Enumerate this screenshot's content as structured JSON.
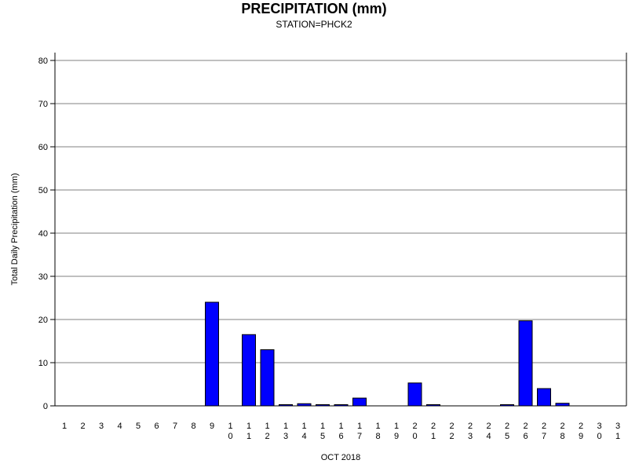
{
  "chart_data": {
    "type": "bar",
    "title": "PRECIPITATION (mm)",
    "subtitle": "STATION=PHCK2",
    "xlabel": "OCT 2018",
    "ylabel": "Total Daily Precipitation (mm)",
    "ylim": [
      0,
      80
    ],
    "yticks": [
      0,
      10,
      20,
      30,
      40,
      50,
      60,
      70,
      80
    ],
    "grid": true,
    "bar_color": "#0000ff",
    "categories": [
      "1",
      "2",
      "3",
      "4",
      "5",
      "6",
      "7",
      "8",
      "9",
      "10",
      "11",
      "12",
      "13",
      "14",
      "15",
      "16",
      "17",
      "18",
      "19",
      "20",
      "21",
      "22",
      "23",
      "24",
      "25",
      "26",
      "27",
      "28",
      "29",
      "30",
      "31"
    ],
    "values": [
      0,
      0,
      0,
      0,
      0,
      0,
      0,
      0,
      24.0,
      0,
      16.5,
      13.0,
      0.2,
      0.5,
      0.2,
      0.2,
      1.8,
      0,
      0,
      5.3,
      0.2,
      0,
      0,
      0,
      0.2,
      19.7,
      4.0,
      0.6,
      0,
      0,
      0
    ]
  }
}
